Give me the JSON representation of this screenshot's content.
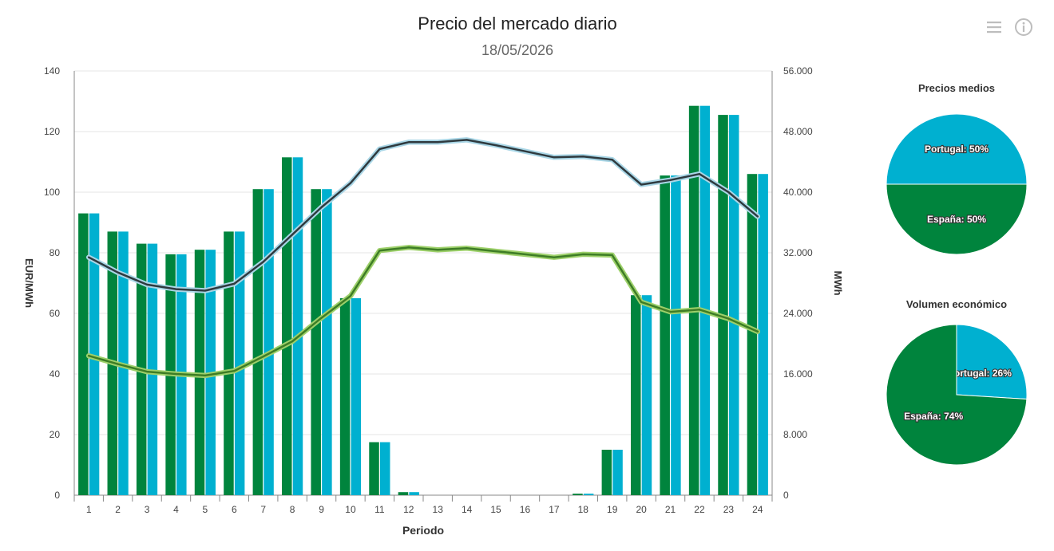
{
  "header": {
    "title": "Precio del mercado diario",
    "subtitle": "18/05/2026"
  },
  "toolbar": {
    "menu_icon": "hamburger-menu-icon",
    "info_icon": "info-circle-icon"
  },
  "colors": {
    "espana": "#00843d",
    "portugal": "#00b0d0",
    "price_line": "#2f3a3f",
    "price_line_halo": "#a9d6e6",
    "energy_line": "#3e7d26",
    "energy_line_halo": "#9dd06a",
    "grid": "#e6e6e6"
  },
  "chart_data": [
    {
      "type": "bar",
      "title": "Precio del mercado diario",
      "subtitle": "18/05/2026",
      "xlabel": "Periodo",
      "ylabel": "EUR/MWh",
      "y2label": "MWh",
      "categories": [
        "1",
        "2",
        "3",
        "4",
        "5",
        "6",
        "7",
        "8",
        "9",
        "10",
        "11",
        "12",
        "13",
        "14",
        "15",
        "16",
        "17",
        "18",
        "19",
        "20",
        "21",
        "22",
        "23",
        "24"
      ],
      "ylim": [
        0,
        140
      ],
      "yticks": [
        "0",
        "20",
        "40",
        "60",
        "80",
        "100",
        "120",
        "140"
      ],
      "y2lim": [
        0,
        56000
      ],
      "y2ticks": [
        "0",
        "8.000",
        "16.000",
        "24.000",
        "32.000",
        "40.000",
        "48.000",
        "56.000"
      ],
      "grid": true,
      "series": [
        {
          "kind": "bar",
          "axis": "left",
          "color_key": "espana",
          "values": [
            93,
            87,
            83,
            79.5,
            81,
            87,
            101,
            111.5,
            101,
            65,
            17.5,
            1,
            0,
            0,
            0,
            0,
            0,
            0.5,
            15,
            66,
            105.5,
            128.5,
            125.5,
            106
          ]
        },
        {
          "kind": "bar",
          "axis": "left",
          "color_key": "portugal",
          "values": [
            93,
            87,
            83,
            79.5,
            81,
            87,
            101,
            111.5,
            101,
            65,
            17.5,
            1,
            0,
            0,
            0,
            0,
            0,
            0.5,
            15,
            66,
            105.5,
            128.5,
            125.5,
            106
          ]
        },
        {
          "kind": "line",
          "axis": "right",
          "color_key": "price_line",
          "halo_key": "price_line_halo",
          "values": [
            31400,
            29400,
            27800,
            27200,
            27000,
            27900,
            30800,
            34400,
            38000,
            41200,
            45700,
            46600,
            46600,
            46900,
            46200,
            45400,
            44600,
            44700,
            44300,
            41000,
            41600,
            42400,
            40000,
            36800
          ]
        },
        {
          "kind": "line",
          "axis": "right",
          "color_key": "energy_line",
          "halo_key": "energy_line_halo",
          "values": [
            18400,
            17300,
            16300,
            16000,
            15800,
            16400,
            18300,
            20300,
            23400,
            26300,
            32300,
            32700,
            32400,
            32600,
            32200,
            31800,
            31400,
            31800,
            31700,
            25500,
            24200,
            24500,
            23300,
            21600
          ]
        }
      ]
    },
    {
      "type": "pie",
      "title": "Precios medios",
      "slices": [
        {
          "label": "Portugal: 50%",
          "value": 50,
          "color_key": "portugal"
        },
        {
          "label": "España: 50%",
          "value": 50,
          "color_key": "espana"
        }
      ]
    },
    {
      "type": "pie",
      "title": "Volumen económico",
      "slices": [
        {
          "label": "Portugal: 26%",
          "value": 26,
          "color_key": "portugal"
        },
        {
          "label": "España: 74%",
          "value": 74,
          "color_key": "espana"
        }
      ]
    }
  ]
}
